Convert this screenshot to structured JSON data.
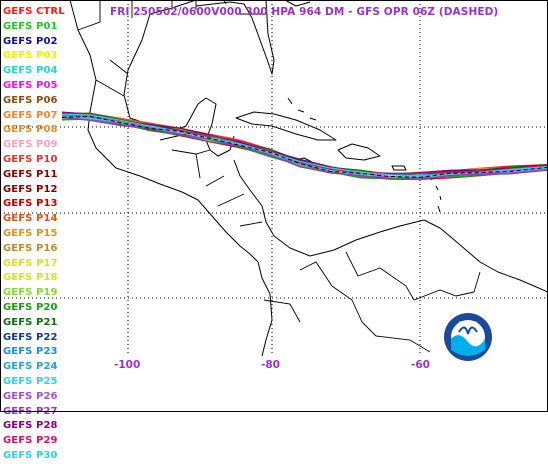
{
  "title": "FRI 250502/0600V000  300 HPA 964 DM - GFS OPR 06Z (DASHED)",
  "title_color": "#9b30c8",
  "legend": [
    {
      "label": "GEFS CTRL",
      "color": "#ff1a1a"
    },
    {
      "label": "GEFS P01",
      "color": "#1ec81e"
    },
    {
      "label": "GEFS P02",
      "color": "#10108c"
    },
    {
      "label": "GEFS P03",
      "color": "#f0f000"
    },
    {
      "label": "GEFS P04",
      "color": "#19d7e6"
    },
    {
      "label": "GEFS P05",
      "color": "#e619e6"
    },
    {
      "label": "GEFS P06",
      "color": "#8c4a10"
    },
    {
      "label": "GEFS P07",
      "color": "#f0872d"
    },
    {
      "label": "GEFS P08",
      "color": "#d99032"
    },
    {
      "label": "GEFS P09",
      "color": "#ff9eb8"
    },
    {
      "label": "GEFS P10",
      "color": "#cd3c32"
    },
    {
      "label": "GEFS P11",
      "color": "#8b0000"
    },
    {
      "label": "GEFS P12",
      "color": "#800000"
    },
    {
      "label": "GEFS P13",
      "color": "#c00000"
    },
    {
      "label": "GEFS P14",
      "color": "#e0500f"
    },
    {
      "label": "GEFS P15",
      "color": "#d2961e"
    },
    {
      "label": "GEFS P16",
      "color": "#c08a23"
    },
    {
      "label": "GEFS P17",
      "color": "#dcdc28"
    },
    {
      "label": "GEFS P18",
      "color": "#c8e632"
    },
    {
      "label": "GEFS P19",
      "color": "#82dc1e"
    },
    {
      "label": "GEFS P20",
      "color": "#14a014"
    },
    {
      "label": "GEFS P21",
      "color": "#0a6e0a"
    },
    {
      "label": "GEFS P22",
      "color": "#143c78"
    },
    {
      "label": "GEFS P23",
      "color": "#1e8cd2"
    },
    {
      "label": "GEFS P24",
      "color": "#28a0dc"
    },
    {
      "label": "GEFS P25",
      "color": "#3cc8e6"
    },
    {
      "label": "GEFS P26",
      "color": "#a050c8"
    },
    {
      "label": "GEFS P27",
      "color": "#8c3cb4"
    },
    {
      "label": "GEFS P28",
      "color": "#7f007f"
    },
    {
      "label": "GEFS P29",
      "color": "#d2145a"
    },
    {
      "label": "GEFS P30",
      "color": "#32d2dc"
    }
  ],
  "longitude_labels": [
    "-100",
    "-80",
    "-60"
  ],
  "longitude_label_color": "#9b30c8",
  "gridline_color": "#000000",
  "coastline_color": "#000000",
  "noaa_logo": {
    "text": "NOAA",
    "colors": {
      "outer": "#1a4a9c",
      "inner": "#00aee8",
      "white": "#ffffff"
    }
  }
}
